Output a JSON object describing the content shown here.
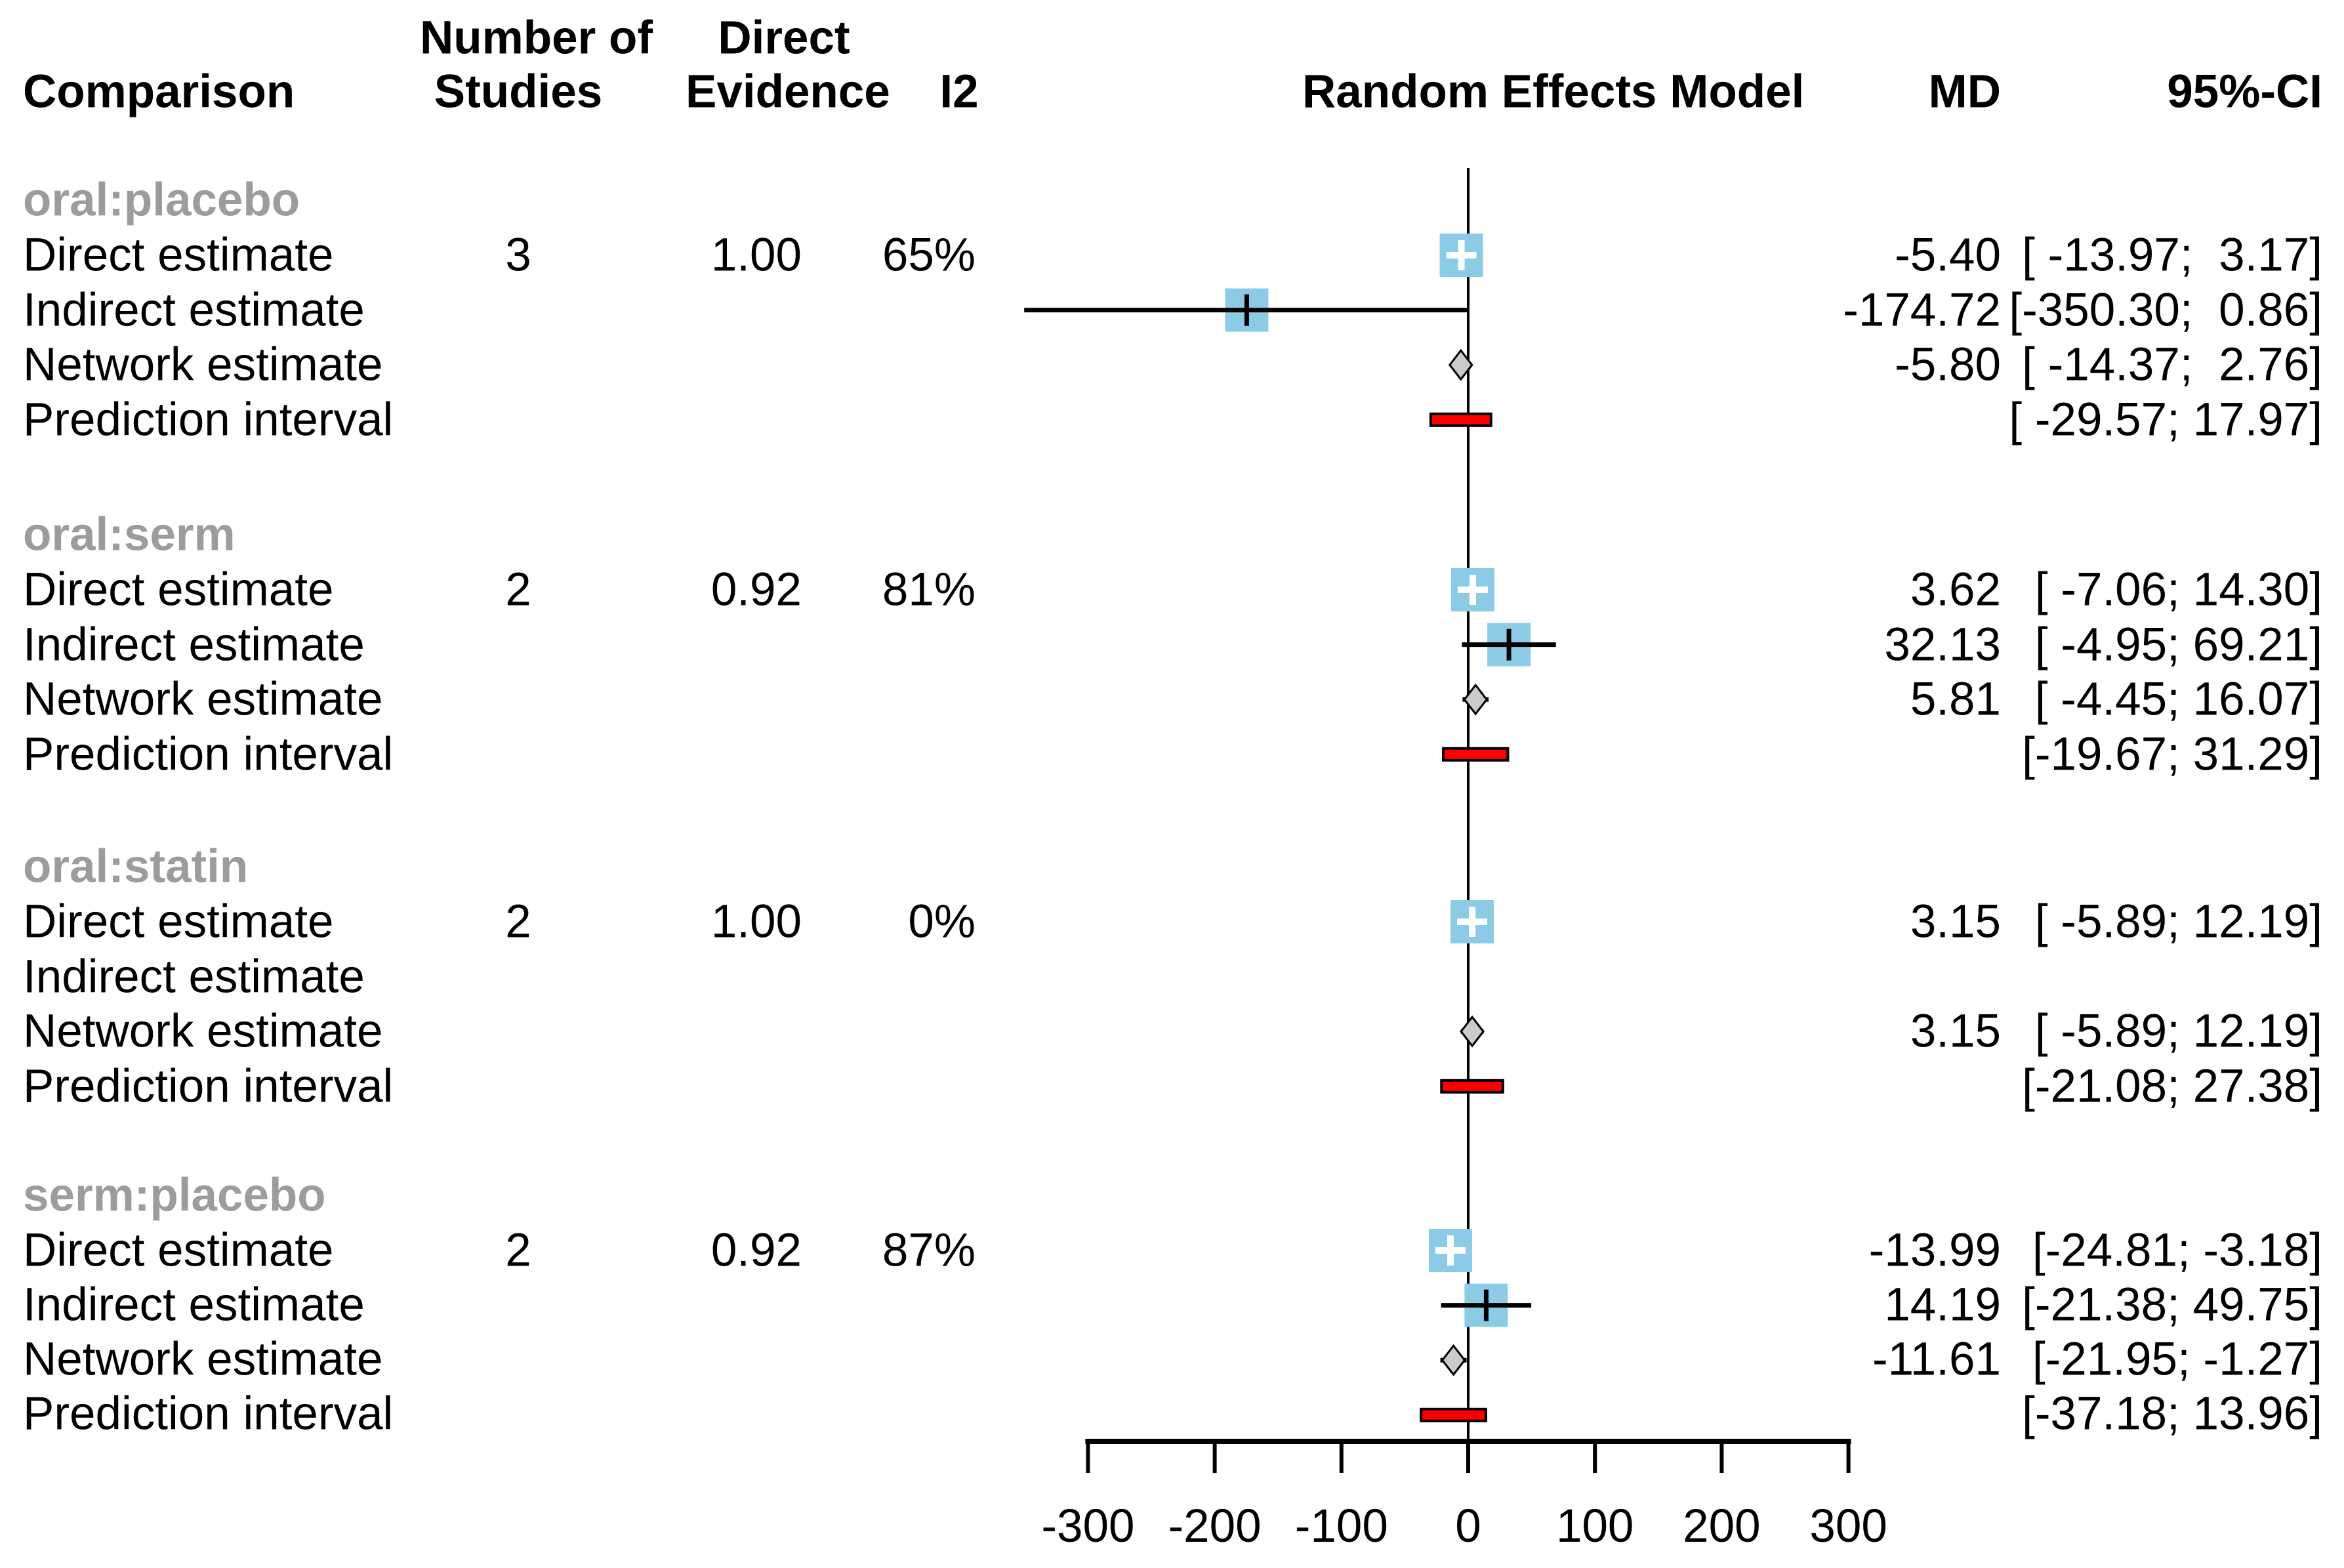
{
  "header": {
    "comparison": "Comparison",
    "studies_line1": "Number of",
    "studies_line2": "Studies",
    "evidence_line1": "Direct",
    "evidence_line2": "Evidence",
    "i2": "I2",
    "plot_title": "Random Effects Model",
    "md": "MD",
    "ci": "95%-CI"
  },
  "colors": {
    "estimate_square": "#8BCBE6",
    "network_diamond": "#CBCBCB",
    "prediction_bar": "#FF0000",
    "group_heading": "#9C9C9C",
    "line": "#000000"
  },
  "groups": [
    {
      "comparison": "oral:placebo",
      "rows": [
        {
          "label": "Direct estimate",
          "studies": "3",
          "direct_evidence": "1.00",
          "i2": "65%",
          "md": "-5.40",
          "ci": "[ -13.97;  3.17]"
        },
        {
          "label": "Indirect estimate",
          "studies": "",
          "direct_evidence": "",
          "i2": "",
          "md": "-174.72",
          "ci": "[-350.30;  0.86]"
        },
        {
          "label": "Network estimate",
          "studies": "",
          "direct_evidence": "",
          "i2": "",
          "md": "-5.80",
          "ci": "[ -14.37;  2.76]"
        },
        {
          "label": "Prediction interval",
          "studies": "",
          "direct_evidence": "",
          "i2": "",
          "md": "",
          "ci": "[ -29.57; 17.97]"
        }
      ]
    },
    {
      "comparison": "oral:serm",
      "rows": [
        {
          "label": "Direct estimate",
          "studies": "2",
          "direct_evidence": "0.92",
          "i2": "81%",
          "md": "3.62",
          "ci": "[ -7.06; 14.30]"
        },
        {
          "label": "Indirect estimate",
          "studies": "",
          "direct_evidence": "",
          "i2": "",
          "md": "32.13",
          "ci": "[ -4.95; 69.21]"
        },
        {
          "label": "Network estimate",
          "studies": "",
          "direct_evidence": "",
          "i2": "",
          "md": "5.81",
          "ci": "[ -4.45; 16.07]"
        },
        {
          "label": "Prediction interval",
          "studies": "",
          "direct_evidence": "",
          "i2": "",
          "md": "",
          "ci": "[-19.67; 31.29]"
        }
      ]
    },
    {
      "comparison": "oral:statin",
      "rows": [
        {
          "label": "Direct estimate",
          "studies": "2",
          "direct_evidence": "1.00",
          "i2": "0%",
          "md": "3.15",
          "ci": "[ -5.89; 12.19]"
        },
        {
          "label": "Indirect estimate",
          "studies": "",
          "direct_evidence": "",
          "i2": "",
          "md": "",
          "ci": ""
        },
        {
          "label": "Network estimate",
          "studies": "",
          "direct_evidence": "",
          "i2": "",
          "md": "3.15",
          "ci": "[ -5.89; 12.19]"
        },
        {
          "label": "Prediction interval",
          "studies": "",
          "direct_evidence": "",
          "i2": "",
          "md": "",
          "ci": "[-21.08; 27.38]"
        }
      ]
    },
    {
      "comparison": "serm:placebo",
      "rows": [
        {
          "label": "Direct estimate",
          "studies": "2",
          "direct_evidence": "0.92",
          "i2": "87%",
          "md": "-13.99",
          "ci": "[-24.81; -3.18]"
        },
        {
          "label": "Indirect estimate",
          "studies": "",
          "direct_evidence": "",
          "i2": "",
          "md": "14.19",
          "ci": "[-21.38; 49.75]"
        },
        {
          "label": "Network estimate",
          "studies": "",
          "direct_evidence": "",
          "i2": "",
          "md": "-11.61",
          "ci": "[-21.95; -1.27]"
        },
        {
          "label": "Prediction interval",
          "studies": "",
          "direct_evidence": "",
          "i2": "",
          "md": "",
          "ci": "[-37.18; 13.96]"
        }
      ]
    }
  ],
  "chart_data": {
    "type": "forest",
    "title": "Random Effects Model",
    "effect_measure": "MD",
    "x_axis": {
      "ticks": [
        -300,
        -200,
        -100,
        0,
        100,
        200,
        300
      ],
      "tick_labels": [
        "-300",
        "-200",
        "-100",
        "0",
        "100",
        "200",
        "300"
      ],
      "range": [
        -300,
        300
      ],
      "zero_line": 0
    },
    "groups": [
      {
        "comparison": "oral:placebo",
        "estimates": [
          {
            "type": "direct",
            "md": -5.4,
            "lower": -13.97,
            "upper": 3.17
          },
          {
            "type": "indirect",
            "md": -174.72,
            "lower": -350.3,
            "upper": 0.86
          },
          {
            "type": "network",
            "md": -5.8,
            "lower": -14.37,
            "upper": 2.76
          },
          {
            "type": "prediction",
            "lower": -29.57,
            "upper": 17.97
          }
        ]
      },
      {
        "comparison": "oral:serm",
        "estimates": [
          {
            "type": "direct",
            "md": 3.62,
            "lower": -7.06,
            "upper": 14.3
          },
          {
            "type": "indirect",
            "md": 32.13,
            "lower": -4.95,
            "upper": 69.21
          },
          {
            "type": "network",
            "md": 5.81,
            "lower": -4.45,
            "upper": 16.07
          },
          {
            "type": "prediction",
            "lower": -19.67,
            "upper": 31.29
          }
        ]
      },
      {
        "comparison": "oral:statin",
        "estimates": [
          {
            "type": "direct",
            "md": 3.15,
            "lower": -5.89,
            "upper": 12.19
          },
          {
            "type": "indirect"
          },
          {
            "type": "network",
            "md": 3.15,
            "lower": -5.89,
            "upper": 12.19
          },
          {
            "type": "prediction",
            "lower": -21.08,
            "upper": 27.38
          }
        ]
      },
      {
        "comparison": "serm:placebo",
        "estimates": [
          {
            "type": "direct",
            "md": -13.99,
            "lower": -24.81,
            "upper": -3.18
          },
          {
            "type": "indirect",
            "md": 14.19,
            "lower": -21.38,
            "upper": 49.75
          },
          {
            "type": "network",
            "md": -11.61,
            "lower": -21.95,
            "upper": -1.27
          },
          {
            "type": "prediction",
            "lower": -37.18,
            "upper": 13.96
          }
        ]
      }
    ]
  }
}
